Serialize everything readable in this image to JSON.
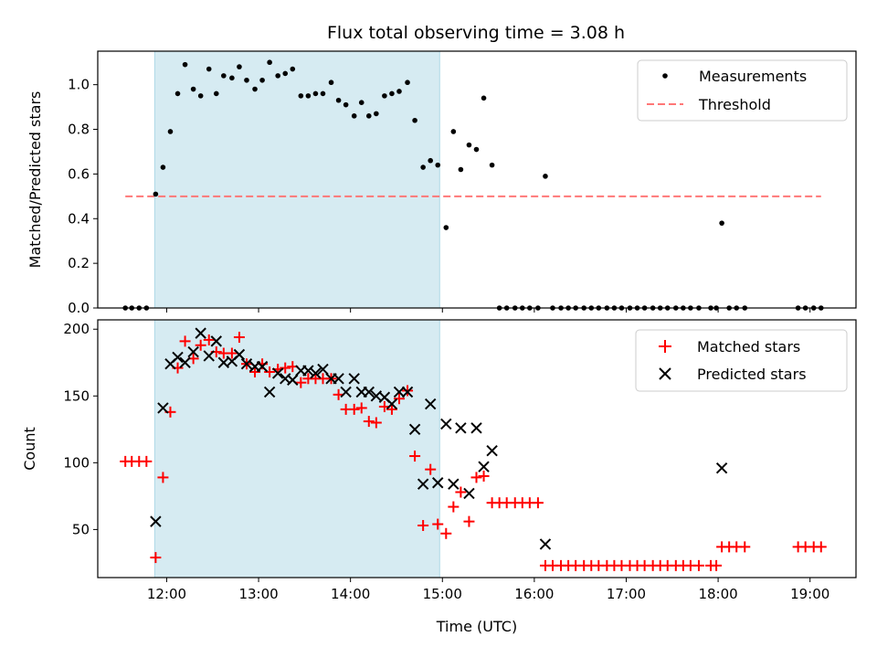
{
  "title": "Flux total observing time = 3.08 h",
  "colors": {
    "shade": "#add8e6",
    "measurement": "#000000",
    "threshold": "#ff7777",
    "matched": "#ff0000",
    "predicted": "#000000"
  },
  "chart_data": [
    {
      "type": "scatter",
      "ylabel": "Matched/Predicted stars",
      "xlim": [
        11.25,
        19.5
      ],
      "ylim": [
        0,
        1.15
      ],
      "yticks": [
        0.0,
        0.2,
        0.4,
        0.6,
        0.8,
        1.0
      ],
      "ytick_labels": [
        "0.0",
        "0.2",
        "0.4",
        "0.6",
        "0.8",
        "1.0"
      ],
      "shaded_span": [
        11.87,
        14.97
      ],
      "legend": {
        "position": "upper right",
        "entries": [
          "Measurements",
          "Threshold"
        ]
      },
      "threshold": {
        "name": "Threshold",
        "value": 0.5,
        "x_range": [
          11.55,
          19.12
        ]
      },
      "series": [
        {
          "name": "Measurements",
          "x": [
            11.55,
            11.62,
            11.7,
            11.78,
            11.88,
            11.96,
            12.04,
            12.12,
            12.2,
            12.29,
            12.37,
            12.46,
            12.54,
            12.62,
            12.71,
            12.79,
            12.87,
            12.96,
            13.04,
            13.12,
            13.21,
            13.29,
            13.37,
            13.46,
            13.54,
            13.62,
            13.7,
            13.79,
            13.87,
            13.95,
            14.04,
            14.12,
            14.2,
            14.28,
            14.37,
            14.45,
            14.53,
            14.62,
            14.7,
            14.79,
            14.87,
            14.95,
            15.04,
            15.12,
            15.2,
            15.29,
            15.37,
            15.45,
            15.54,
            15.62,
            15.7,
            15.79,
            15.87,
            15.95,
            16.04,
            16.12,
            16.2,
            16.29,
            16.37,
            16.45,
            16.54,
            16.62,
            16.7,
            16.79,
            16.87,
            16.95,
            17.04,
            17.12,
            17.2,
            17.29,
            17.37,
            17.45,
            17.54,
            17.62,
            17.7,
            17.79,
            17.92,
            17.98,
            18.04,
            18.12,
            18.2,
            18.29,
            18.87,
            18.95,
            19.04,
            19.12
          ],
          "y": [
            0,
            0,
            0,
            0,
            0.51,
            0.63,
            0.79,
            0.96,
            1.09,
            0.98,
            0.95,
            1.07,
            0.96,
            1.04,
            1.03,
            1.08,
            1.02,
            0.98,
            1.02,
            1.1,
            1.04,
            1.05,
            1.07,
            0.95,
            0.95,
            0.96,
            0.96,
            1.01,
            0.93,
            0.91,
            0.86,
            0.92,
            0.86,
            0.87,
            0.95,
            0.96,
            0.97,
            1.01,
            0.84,
            0.63,
            0.66,
            0.64,
            0.36,
            0.79,
            0.62,
            0.73,
            0.71,
            0.94,
            0.64,
            0,
            0,
            0,
            0,
            0,
            0,
            0.59,
            0,
            0,
            0,
            0,
            0,
            0,
            0,
            0,
            0,
            0,
            0,
            0,
            0,
            0,
            0,
            0,
            0,
            0,
            0,
            0,
            0,
            0,
            0.38,
            0,
            0,
            0,
            0,
            0,
            0,
            0
          ]
        }
      ]
    },
    {
      "type": "scatter",
      "xlabel": "Time (UTC)",
      "ylabel": "Count",
      "xlim": [
        11.25,
        19.5
      ],
      "ylim": [
        14,
        207
      ],
      "xticks": [
        12,
        13,
        14,
        15,
        16,
        17,
        18,
        19
      ],
      "xtick_labels": [
        "12:00",
        "13:00",
        "14:00",
        "15:00",
        "16:00",
        "17:00",
        "18:00",
        "19:00"
      ],
      "yticks": [
        50,
        100,
        150,
        200
      ],
      "ytick_labels": [
        "50",
        "100",
        "150",
        "200"
      ],
      "shaded_span": [
        11.87,
        14.97
      ],
      "legend": {
        "position": "upper right",
        "entries": [
          "Matched stars",
          "Predicted stars"
        ]
      },
      "series": [
        {
          "name": "Matched stars",
          "marker": "plus",
          "x": [
            11.55,
            11.62,
            11.7,
            11.78,
            11.88,
            11.96,
            12.04,
            12.12,
            12.2,
            12.29,
            12.37,
            12.46,
            12.54,
            12.62,
            12.71,
            12.79,
            12.87,
            12.96,
            13.04,
            13.12,
            13.21,
            13.29,
            13.37,
            13.46,
            13.54,
            13.62,
            13.7,
            13.79,
            13.87,
            13.95,
            14.04,
            14.12,
            14.2,
            14.28,
            14.37,
            14.45,
            14.53,
            14.62,
            14.7,
            14.79,
            14.87,
            14.95,
            15.04,
            15.12,
            15.2,
            15.29,
            15.37,
            15.45,
            15.54,
            15.62,
            15.7,
            15.79,
            15.87,
            15.95,
            16.04,
            16.12,
            16.2,
            16.29,
            16.37,
            16.45,
            16.54,
            16.62,
            16.7,
            16.79,
            16.87,
            16.95,
            17.04,
            17.12,
            17.2,
            17.29,
            17.37,
            17.45,
            17.54,
            17.62,
            17.7,
            17.79,
            17.92,
            17.98,
            18.04,
            18.12,
            18.2,
            18.29,
            18.87,
            18.95,
            19.04,
            19.12
          ],
          "y": [
            101,
            101,
            101,
            101,
            29,
            89,
            138,
            171,
            191,
            178,
            188,
            192,
            183,
            182,
            182,
            194,
            174,
            168,
            174,
            168,
            170,
            171,
            172,
            160,
            163,
            163,
            163,
            163,
            151,
            140,
            140,
            141,
            131,
            130,
            142,
            140,
            148,
            154,
            105,
            53,
            95,
            54,
            47,
            67,
            78,
            56,
            89,
            90,
            70,
            70,
            70,
            70,
            70,
            70,
            70,
            23,
            23,
            23,
            23,
            23,
            23,
            23,
            23,
            23,
            23,
            23,
            23,
            23,
            23,
            23,
            23,
            23,
            23,
            23,
            23,
            23,
            23,
            23,
            37,
            37,
            37,
            37,
            37,
            37,
            37,
            37
          ]
        },
        {
          "name": "Predicted stars",
          "marker": "x",
          "x": [
            11.88,
            11.96,
            12.04,
            12.12,
            12.2,
            12.29,
            12.37,
            12.46,
            12.54,
            12.62,
            12.71,
            12.79,
            12.87,
            12.96,
            13.04,
            13.12,
            13.21,
            13.29,
            13.37,
            13.46,
            13.54,
            13.62,
            13.7,
            13.79,
            13.87,
            13.95,
            14.04,
            14.12,
            14.2,
            14.28,
            14.37,
            14.45,
            14.53,
            14.62,
            14.7,
            14.79,
            14.87,
            14.95,
            15.04,
            15.12,
            15.2,
            15.29,
            15.37,
            15.45,
            15.54,
            16.12,
            18.04
          ],
          "y": [
            56,
            141,
            174,
            179,
            175,
            183,
            197,
            180,
            191,
            175,
            176,
            181,
            174,
            172,
            172,
            153,
            167,
            163,
            162,
            169,
            169,
            167,
            170,
            163,
            163,
            153,
            163,
            153,
            153,
            150,
            149,
            144,
            153,
            153,
            125,
            84,
            144,
            85,
            129,
            84,
            126,
            77,
            126,
            97,
            109,
            39,
            96
          ]
        }
      ]
    }
  ]
}
